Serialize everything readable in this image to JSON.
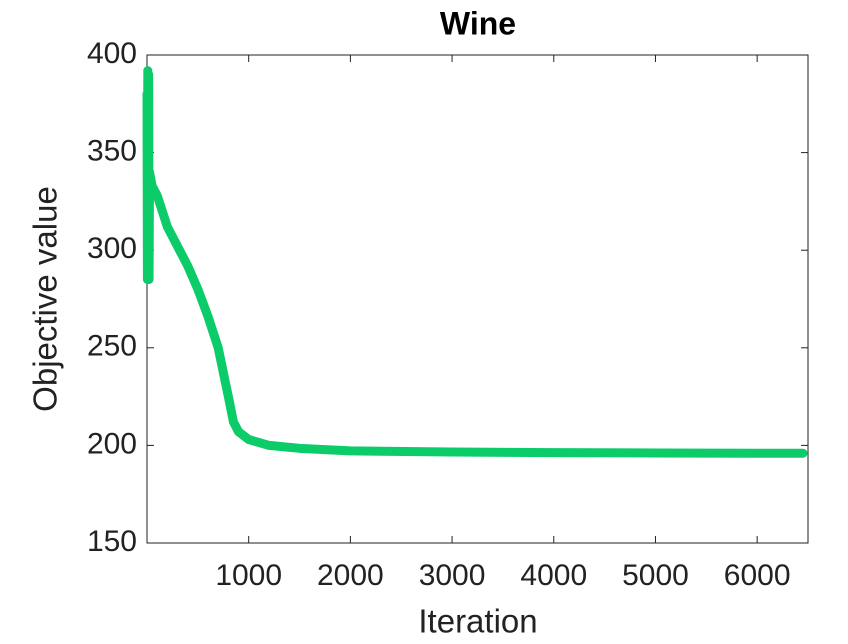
{
  "chart_data": {
    "type": "line",
    "title": "Wine",
    "x_label": "Iteration",
    "y_label": "Objective value",
    "x": [
      0,
      4,
      8,
      12,
      16,
      20,
      25,
      50,
      100,
      200,
      300,
      400,
      500,
      600,
      700,
      800,
      850,
      900,
      1000,
      1200,
      1500,
      2000,
      3000,
      4000,
      5000,
      6000,
      6450
    ],
    "series": [
      {
        "name": "Objective value",
        "color": "#0bcc68",
        "values": [
          380,
          285,
          392,
          285,
          390,
          285,
          340,
          333,
          328,
          312,
          302,
          292,
          280,
          266,
          250,
          225,
          212,
          207,
          203,
          200,
          198.5,
          197.2,
          196.6,
          196.3,
          196.1,
          196,
          196
        ]
      }
    ],
    "xlim": [
      0,
      6500
    ],
    "xticks": [
      1000,
      2000,
      3000,
      4000,
      5000,
      6000
    ],
    "ylim": [
      150,
      400
    ],
    "yticks": [
      150,
      200,
      250,
      300,
      350,
      400
    ]
  }
}
